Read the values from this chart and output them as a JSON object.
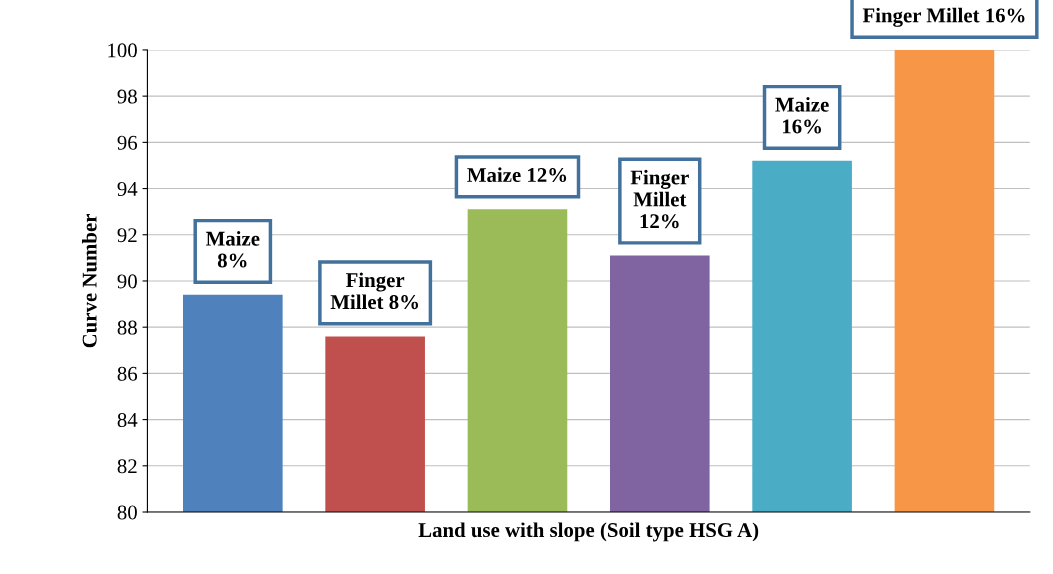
{
  "chart_data": {
    "type": "bar",
    "xlabel": "Land use with slope (Soil type HSG A)",
    "ylabel": "Curve Number",
    "categories": [
      null,
      null,
      null,
      null,
      null,
      null
    ],
    "values": [
      89.4,
      87.6,
      93.1,
      91.1,
      95.2,
      100
    ],
    "colors": [
      "#4f81bd",
      "#c0504d",
      "#9bbb59",
      "#8064a2",
      "#4bacc6",
      "#f79646"
    ],
    "ylim": [
      80,
      100
    ],
    "yticks": [
      80,
      82,
      84,
      86,
      88,
      90,
      92,
      94,
      96,
      98,
      100
    ],
    "grid": "y",
    "annotations": [
      "Maize\n8%",
      "Finger\nMillet 8%",
      "Maize 12%",
      "Finger\nMillet\n12%",
      "Maize\n16%",
      "Finger Millet 16%"
    ]
  }
}
